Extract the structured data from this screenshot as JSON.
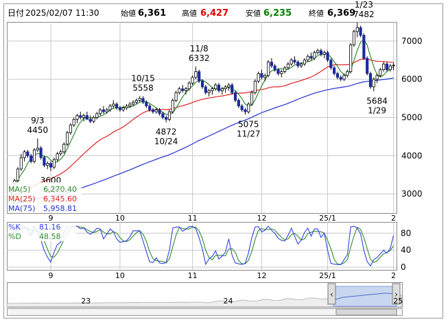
{
  "header": {
    "date_label": "日付",
    "date_value": "2025/02/07 11:30",
    "open_label": "始値",
    "open_value": "6,361",
    "high_label": "高値",
    "high_value": "6,427",
    "low_label": "安値",
    "low_value": "6,235",
    "close_label": "終値",
    "close_value": "6,369"
  },
  "colors": {
    "ma5": "#2e8b2e",
    "ma25": "#e02020",
    "ma75": "#2030d0",
    "candle": "#1a2aa0",
    "high_value": "#e00000",
    "low_value": "#008000",
    "grid": "#c8c8c8",
    "navigator_fill": "#c9d6f0",
    "navigator_handle": "#dedede"
  },
  "chart_data": [
    {
      "type": "candlestick",
      "x_ticks": [
        {
          "label": "9",
          "index": 12
        },
        {
          "label": "10",
          "index": 33
        },
        {
          "label": "11",
          "index": 55
        },
        {
          "label": "12",
          "index": 76
        },
        {
          "label": "25/1",
          "index": 96
        },
        {
          "label": "2",
          "index": 116
        }
      ],
      "ylim": [
        2500,
        7500
      ],
      "y_ticks": [
        3000,
        4000,
        5000,
        6000,
        7000
      ],
      "grid": true,
      "legend": [
        {
          "name": "MA(5)",
          "value": "6,270.40",
          "color": "#2e8b2e"
        },
        {
          "name": "MA(25)",
          "value": "6,345.60",
          "color": "#e02020"
        },
        {
          "name": "MA(75)",
          "value": "5,958.81",
          "color": "#2030d0"
        }
      ],
      "legend_placement": "bottom-left",
      "annotations": [
        {
          "date": "9/3",
          "value": "4450",
          "index": 8,
          "price": 4450,
          "position": "above"
        },
        {
          "date": "9/9",
          "value": "3600",
          "index": 12,
          "price": 3600,
          "position": "below"
        },
        {
          "date": "10/15",
          "value": "5558",
          "index": 40,
          "price": 5558,
          "position": "above"
        },
        {
          "date": "10/24",
          "value": "4872",
          "index": 47,
          "price": 4872,
          "position": "below"
        },
        {
          "date": "11/8",
          "value": "6332",
          "index": 57,
          "price": 6332,
          "position": "above"
        },
        {
          "date": "11/27",
          "value": "5075",
          "index": 72,
          "price": 5075,
          "position": "below"
        },
        {
          "date": "1/23",
          "value": "7482",
          "index": 107,
          "price": 7482,
          "position": "above"
        },
        {
          "date": "1/29",
          "value": "5684",
          "index": 111,
          "price": 5684,
          "position": "below"
        }
      ],
      "ohlc": [
        [
          3050,
          3150,
          2950,
          3100
        ],
        [
          3100,
          3400,
          3050,
          3350
        ],
        [
          3350,
          3700,
          3300,
          3650
        ],
        [
          3650,
          4050,
          3600,
          3950
        ],
        [
          3950,
          4150,
          3850,
          4100
        ],
        [
          4100,
          4150,
          3950,
          4000
        ],
        [
          4000,
          4050,
          3800,
          3850
        ],
        [
          3850,
          4200,
          3800,
          4150
        ],
        [
          4150,
          4450,
          4100,
          4200
        ],
        [
          4200,
          4250,
          3900,
          3950
        ],
        [
          3950,
          4000,
          3700,
          3750
        ],
        [
          3750,
          3850,
          3650,
          3800
        ],
        [
          3800,
          3850,
          3600,
          3700
        ],
        [
          3700,
          3950,
          3650,
          3900
        ],
        [
          3900,
          4100,
          3850,
          4050
        ],
        [
          4050,
          4150,
          4000,
          4100
        ],
        [
          4100,
          4350,
          4050,
          4300
        ],
        [
          4300,
          4650,
          4250,
          4600
        ],
        [
          4600,
          4850,
          4550,
          4800
        ],
        [
          4800,
          5000,
          4750,
          4950
        ],
        [
          4950,
          5100,
          4850,
          5050
        ],
        [
          5050,
          5150,
          4950,
          5000
        ],
        [
          5000,
          5100,
          4900,
          5050
        ],
        [
          5050,
          5150,
          4950,
          4950
        ],
        [
          4950,
          5050,
          4850,
          4900
        ],
        [
          4900,
          5050,
          4850,
          5000
        ],
        [
          5000,
          5150,
          4950,
          5100
        ],
        [
          5100,
          5250,
          5050,
          5200
        ],
        [
          5200,
          5300,
          5100,
          5150
        ],
        [
          5150,
          5250,
          5100,
          5200
        ],
        [
          5200,
          5350,
          5150,
          5300
        ],
        [
          5300,
          5450,
          5250,
          5350
        ],
        [
          5350,
          5400,
          5200,
          5250
        ],
        [
          5250,
          5300,
          5150,
          5200
        ],
        [
          5200,
          5300,
          5150,
          5250
        ],
        [
          5250,
          5350,
          5200,
          5300
        ],
        [
          5300,
          5400,
          5250,
          5350
        ],
        [
          5350,
          5450,
          5300,
          5400
        ],
        [
          5400,
          5500,
          5350,
          5450
        ],
        [
          5450,
          5558,
          5400,
          5500
        ],
        [
          5500,
          5558,
          5350,
          5400
        ],
        [
          5400,
          5450,
          5250,
          5300
        ],
        [
          5300,
          5350,
          5150,
          5200
        ],
        [
          5200,
          5250,
          5100,
          5150
        ],
        [
          5150,
          5250,
          5100,
          5200
        ],
        [
          5200,
          5250,
          5050,
          5100
        ],
        [
          5100,
          5150,
          4950,
          5000
        ],
        [
          5000,
          5050,
          4872,
          4950
        ],
        [
          4950,
          5200,
          4900,
          5150
        ],
        [
          5150,
          5500,
          5100,
          5450
        ],
        [
          5450,
          5700,
          5400,
          5650
        ],
        [
          5650,
          5800,
          5600,
          5750
        ],
        [
          5750,
          5850,
          5650,
          5700
        ],
        [
          5700,
          5800,
          5600,
          5750
        ],
        [
          5750,
          5950,
          5700,
          5900
        ],
        [
          5900,
          6100,
          5850,
          6050
        ],
        [
          6050,
          6332,
          6000,
          6200
        ],
        [
          6200,
          6250,
          5900,
          5950
        ],
        [
          5950,
          6000,
          5750,
          5800
        ],
        [
          5800,
          5850,
          5600,
          5650
        ],
        [
          5650,
          5750,
          5550,
          5700
        ],
        [
          5700,
          5800,
          5600,
          5750
        ],
        [
          5750,
          5900,
          5700,
          5850
        ],
        [
          5850,
          5900,
          5650,
          5700
        ],
        [
          5700,
          5800,
          5600,
          5750
        ],
        [
          5750,
          5850,
          5650,
          5800
        ],
        [
          5800,
          5900,
          5700,
          5850
        ],
        [
          5850,
          5900,
          5600,
          5650
        ],
        [
          5650,
          5700,
          5400,
          5450
        ],
        [
          5450,
          5500,
          5250,
          5300
        ],
        [
          5300,
          5350,
          5150,
          5200
        ],
        [
          5200,
          5250,
          5075,
          5150
        ],
        [
          5150,
          5400,
          5100,
          5350
        ],
        [
          5350,
          5700,
          5300,
          5650
        ],
        [
          5650,
          6000,
          5600,
          5950
        ],
        [
          5950,
          6200,
          5900,
          6150
        ],
        [
          6150,
          6250,
          6000,
          6050
        ],
        [
          6050,
          6150,
          5950,
          6100
        ],
        [
          6100,
          6500,
          6050,
          6450
        ],
        [
          6450,
          6550,
          6300,
          6350
        ],
        [
          6350,
          6400,
          6200,
          6250
        ],
        [
          6250,
          6300,
          6100,
          6150
        ],
        [
          6150,
          6250,
          6050,
          6200
        ],
        [
          6200,
          6350,
          6150,
          6300
        ],
        [
          6300,
          6450,
          6250,
          6400
        ],
        [
          6400,
          6550,
          6350,
          6500
        ],
        [
          6500,
          6600,
          6400,
          6450
        ],
        [
          6450,
          6500,
          6300,
          6350
        ],
        [
          6350,
          6450,
          6300,
          6400
        ],
        [
          6400,
          6550,
          6350,
          6500
        ],
        [
          6500,
          6650,
          6450,
          6600
        ],
        [
          6600,
          6700,
          6500,
          6550
        ],
        [
          6550,
          6750,
          6500,
          6700
        ],
        [
          6700,
          6800,
          6650,
          6750
        ],
        [
          6750,
          6800,
          6600,
          6650
        ],
        [
          6650,
          6750,
          6550,
          6700
        ],
        [
          6700,
          6750,
          6450,
          6500
        ],
        [
          6500,
          6550,
          6250,
          6300
        ],
        [
          6300,
          6350,
          6100,
          6150
        ],
        [
          6150,
          6200,
          6000,
          6050
        ],
        [
          6050,
          6100,
          5950,
          6000
        ],
        [
          6000,
          6150,
          5950,
          6100
        ],
        [
          6100,
          6250,
          6050,
          6200
        ],
        [
          6200,
          6950,
          6150,
          6900
        ],
        [
          6900,
          7300,
          6850,
          7250
        ],
        [
          7250,
          7482,
          7100,
          7350
        ],
        [
          7350,
          7400,
          7100,
          7150
        ],
        [
          7150,
          7200,
          6500,
          6550
        ],
        [
          6550,
          6600,
          6100,
          6150
        ],
        [
          6150,
          6200,
          5750,
          5800
        ],
        [
          5800,
          6050,
          5684,
          6000
        ],
        [
          6000,
          6150,
          5900,
          6100
        ],
        [
          6100,
          6300,
          6050,
          6250
        ],
        [
          6250,
          6450,
          6200,
          6400
        ],
        [
          6400,
          6450,
          6200,
          6250
        ],
        [
          6250,
          6400,
          6200,
          6350
        ],
        [
          6361,
          6427,
          6235,
          6369
        ]
      ]
    },
    {
      "type": "line",
      "series": [
        {
          "name": "%K",
          "value": "81.16",
          "color": "#3040e0"
        },
        {
          "name": "%D",
          "value": "48.58",
          "color": "#2e8b2e"
        }
      ],
      "ylim": [
        0,
        100
      ],
      "y_ticks": [
        0,
        40,
        80
      ],
      "grid": true,
      "legend_placement": "top-left"
    },
    {
      "type": "area",
      "x_ticks": [
        {
          "label": "23",
          "position": 0.2
        },
        {
          "label": "24",
          "position": 0.56
        },
        {
          "label": "25",
          "position": 0.99
        }
      ],
      "selected_range": "last ~5 months"
    }
  ]
}
